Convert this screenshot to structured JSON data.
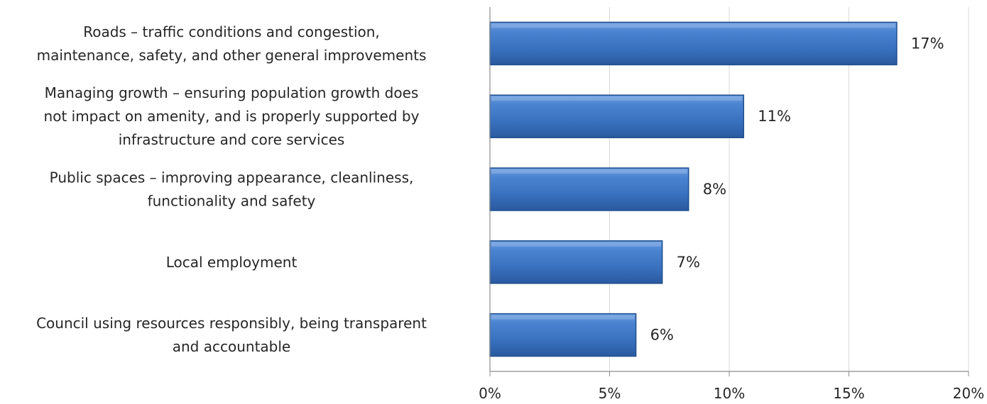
{
  "chart_data": {
    "type": "bar",
    "orientation": "horizontal",
    "categories": [
      [
        "Roads – traffic conditions and congestion,",
        "maintenance, safety, and other general improvements"
      ],
      [
        "Managing growth – ensuring population growth does",
        "not impact on amenity, and is properly supported by",
        "infrastructure and core services"
      ],
      [
        "Public spaces – improving appearance, cleanliness,",
        "functionality and safety"
      ],
      [
        "Local employment"
      ],
      [
        "Council using resources responsibly, being transparent",
        "and accountable"
      ]
    ],
    "values": [
      17,
      10.6,
      8.3,
      7.2,
      6.1
    ],
    "data_labels": [
      "17%",
      "11%",
      "8%",
      "7%",
      "6%"
    ],
    "x_ticks": [
      0,
      5,
      10,
      15,
      20
    ],
    "x_tick_labels": [
      "0%",
      "5%",
      "10%",
      "15%",
      "20%"
    ],
    "xlim": [
      0,
      20
    ],
    "grid": true,
    "legend": "none",
    "bar_color": "#3a76c4",
    "bar_edge_color": "#1f4e8c",
    "grid_color": "#d9d9d9",
    "axis_color": "#8c8c8c"
  }
}
